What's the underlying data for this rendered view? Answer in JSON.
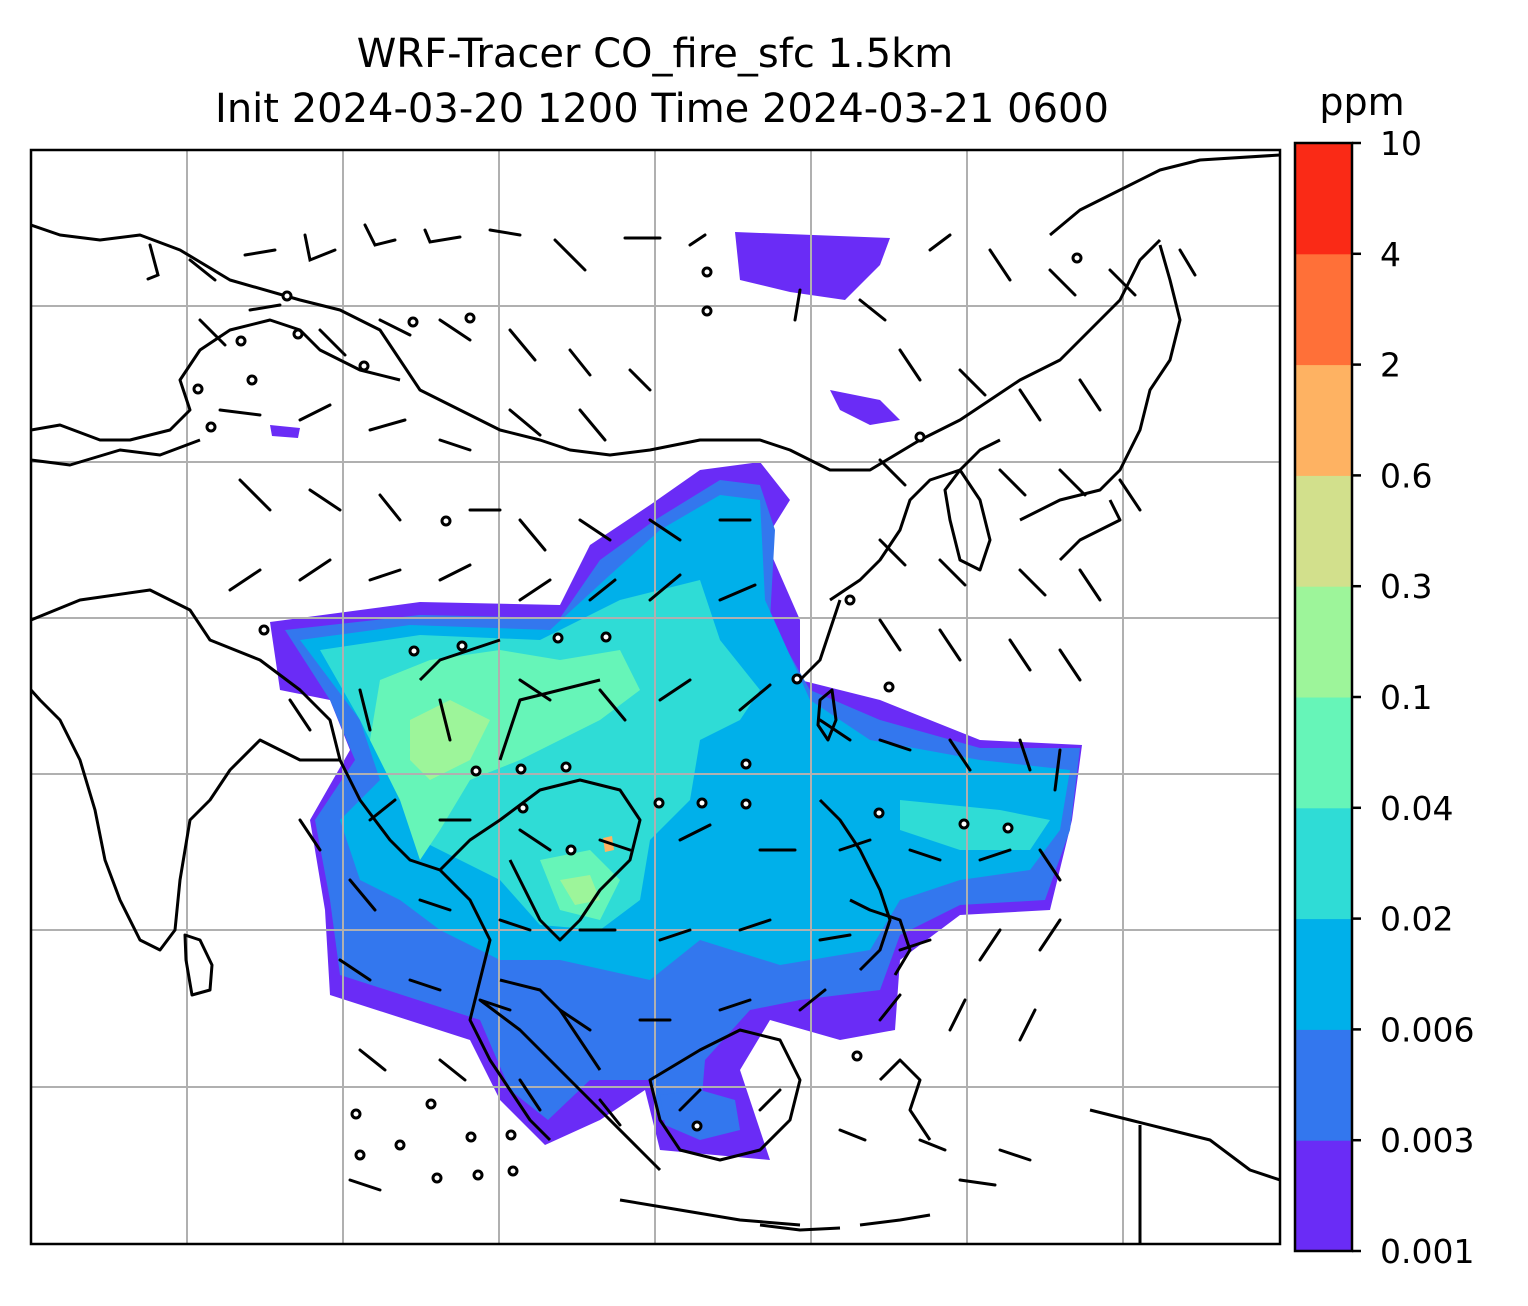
{
  "figure": {
    "title_line1": "WRF-Tracer CO_fire_sfc 1.5km",
    "title_line2": "Init 2024-03-20 1200 Time 2024-03-21 0600"
  },
  "colorbar": {
    "unit": "ppm",
    "levels": [
      "0.001",
      "0.003",
      "0.006",
      "0.02",
      "0.04",
      "0.1",
      "0.3",
      "0.6",
      "2",
      "4",
      "10"
    ],
    "colors": [
      "#6a2cf6",
      "#3377ee",
      "#00b0ea",
      "#2fdcd6",
      "#66f5b8",
      "#9df59a",
      "#d2e08c",
      "#feb262",
      "#ff7038",
      "#fa2a16"
    ]
  },
  "map": {
    "gridlines": true,
    "legend_placement": "right colorbar",
    "color_land_outline": "#000000",
    "color_grid": "#b0b0b0",
    "wind_barbs": true
  }
}
